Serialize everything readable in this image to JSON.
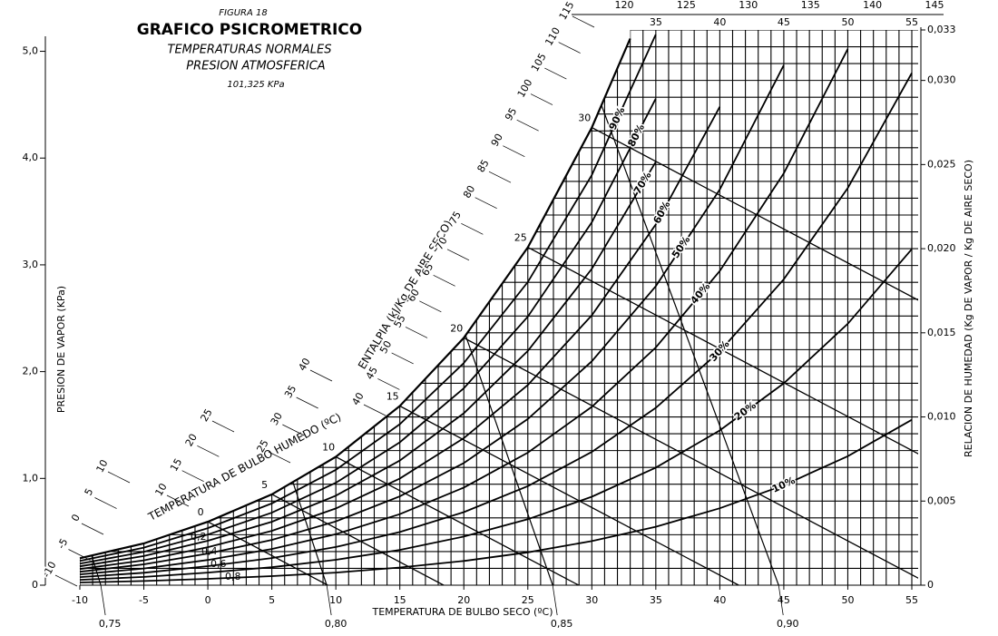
{
  "chart_data": {
    "type": "psychrometric",
    "figure_label": "FIGURA 18",
    "title": "GRAFICO PSICROMETRICO",
    "subtitle": [
      "TEMPERATURAS NORMALES",
      "PRESION ATMOSFERICA",
      "101,325 KPa"
    ],
    "xlabel": "TEMPERATURA DE BULBO SECO (ºC)",
    "ylabel": "PRESION DE VAPOR (KPa)",
    "y2label": "RELACION DE HUMEDAD (Kg DE VAPOR / Kg DE AIRE SECO)",
    "xlim": [
      -10,
      55
    ],
    "xticks": [
      -10,
      -5,
      0,
      5,
      10,
      15,
      20,
      25,
      30,
      35,
      40,
      45,
      50,
      55
    ],
    "ylim": [
      0,
      5.2
    ],
    "yticks": [
      0,
      {
        "value": 1,
        "label": "1,0"
      },
      {
        "value": 2,
        "label": "2,0"
      },
      {
        "value": 3,
        "label": "3,0"
      },
      {
        "value": 4,
        "label": "4,0"
      },
      {
        "value": 5,
        "label": "5,0"
      }
    ],
    "y2lim": [
      0,
      0.033
    ],
    "y2ticks": [
      0,
      {
        "value": 0.005,
        "label": "0,005"
      },
      {
        "value": 0.01,
        "label": "0,010"
      },
      {
        "value": 0.015,
        "label": "0,015"
      },
      {
        "value": 0.02,
        "label": "0,020"
      },
      {
        "value": 0.025,
        "label": "0,025"
      },
      {
        "value": 0.03,
        "label": "0,030"
      },
      {
        "value": 0.033,
        "label": "0,033"
      }
    ],
    "grid": true,
    "minor_grid": {
      "x": 1,
      "y2": 0.001
    },
    "color": "#000000",
    "series": [
      {
        "name": "10%",
        "axis": "y2",
        "x": [
          -10,
          -5,
          0,
          5,
          10,
          15,
          20,
          25,
          30,
          35,
          40,
          45,
          50,
          55
        ],
        "values": [
          0.00016,
          0.00025,
          0.00038,
          0.00054,
          0.00075,
          0.00105,
          0.00144,
          0.00195,
          0.00262,
          0.00347,
          0.00457,
          0.00594,
          0.00767,
          0.00983
        ]
      },
      {
        "name": "20%",
        "axis": "y2",
        "x": [
          -10,
          -5,
          0,
          5,
          10,
          15,
          20,
          25,
          30,
          35,
          40,
          45,
          50,
          55
        ],
        "values": [
          0.00032,
          0.00049,
          0.00075,
          0.00107,
          0.00151,
          0.0021,
          0.00289,
          0.00392,
          0.00526,
          0.00699,
          0.0092,
          0.012,
          0.01554,
          0.01997
        ]
      },
      {
        "name": "30%",
        "axis": "y2",
        "x": [
          -10,
          -5,
          0,
          5,
          10,
          15,
          20,
          25,
          30,
          35,
          40,
          45,
          50,
          55
        ],
        "values": [
          0.00048,
          0.00074,
          0.00113,
          0.00161,
          0.00227,
          0.00316,
          0.00434,
          0.00589,
          0.00792,
          0.01054,
          0.0139,
          0.01818,
          0.02361,
          0.03044
        ]
      },
      {
        "name": "40%",
        "axis": "y2",
        "x": [
          -10,
          -5,
          0,
          5,
          10,
          15,
          20,
          25,
          30,
          35,
          40,
          45,
          50
        ],
        "values": [
          0.00064,
          0.00099,
          0.0015,
          0.00215,
          0.00303,
          0.00422,
          0.0058,
          0.00788,
          0.0106,
          0.01413,
          0.01868,
          0.02448,
          0.03188
        ]
      },
      {
        "name": "50%",
        "axis": "y2",
        "x": [
          -10,
          -5,
          0,
          5,
          10,
          15,
          20,
          25,
          30,
          35,
          40,
          45
        ],
        "values": [
          0.0008,
          0.00124,
          0.00188,
          0.00269,
          0.00379,
          0.00528,
          0.00726,
          0.00988,
          0.01331,
          0.01777,
          0.02352,
          0.03091
        ]
      },
      {
        "name": "60%",
        "axis": "y2",
        "x": [
          -10,
          -5,
          0,
          5,
          10,
          15,
          20,
          25,
          30,
          35,
          40
        ],
        "values": [
          0.00096,
          0.00148,
          0.00226,
          0.00323,
          0.00456,
          0.00634,
          0.00874,
          0.0119,
          0.01604,
          0.02144,
          0.02844
        ]
      },
      {
        "name": "70%",
        "axis": "y2",
        "x": [
          -10,
          -5,
          0,
          5,
          10,
          15,
          20,
          25,
          30,
          35
        ],
        "values": [
          0.00112,
          0.00173,
          0.00264,
          0.00377,
          0.00532,
          0.00741,
          0.01022,
          0.01392,
          0.0188,
          0.02516
        ]
      },
      {
        "name": "80%",
        "axis": "y2",
        "x": [
          -10,
          -5,
          0,
          5,
          10,
          15,
          20,
          25,
          30,
          35
        ],
        "values": [
          0.00128,
          0.00198,
          0.00301,
          0.00431,
          0.00609,
          0.00849,
          0.0117,
          0.01596,
          0.02157,
          0.02892
        ]
      },
      {
        "name": "90%",
        "axis": "y2",
        "x": [
          -10,
          -5,
          0,
          5,
          10,
          15,
          20,
          25,
          30,
          35
        ],
        "values": [
          0.00144,
          0.00223,
          0.00339,
          0.00486,
          0.00686,
          0.00957,
          0.0132,
          0.01802,
          0.02438,
          0.03273
        ]
      },
      {
        "axis": "y2",
        "x": [
          -10,
          -5,
          0,
          5,
          10,
          15,
          20,
          25,
          30,
          33
        ],
        "values": [
          0.0016,
          0.00248,
          0.00377,
          0.0054,
          0.00763,
          0.01065,
          0.0147,
          0.02008,
          0.0272,
          0.03249
        ]
      }
    ],
    "wet_bulb": {
      "label": "TEMPERATURA DE BULBO HUMEDO (ºC)",
      "values": [
        0,
        5,
        10,
        15,
        20,
        25,
        30
      ]
    },
    "enthalpy": {
      "label": "ENTALPIA (kJ/Kg DE AIRE SECO)",
      "scales": [
        [
          -10,
          -5,
          0,
          5,
          10
        ],
        [
          10,
          15,
          20,
          25
        ],
        [
          25,
          30,
          35,
          40
        ],
        [
          40,
          45,
          50,
          55,
          60,
          65,
          70,
          75,
          80,
          85,
          90,
          95,
          100,
          105,
          110,
          115
        ],
        [
          120,
          125,
          130,
          135,
          140,
          145
        ]
      ]
    },
    "volume": {
      "values": [
        0.75,
        0.8,
        0.85,
        0.9
      ],
      "value_labels": [
        "0,75",
        "0,80",
        "0,85",
        "0,90"
      ]
    },
    "inset_labels": [
      "0,2",
      "0,4",
      "0,6",
      "0,8"
    ]
  }
}
